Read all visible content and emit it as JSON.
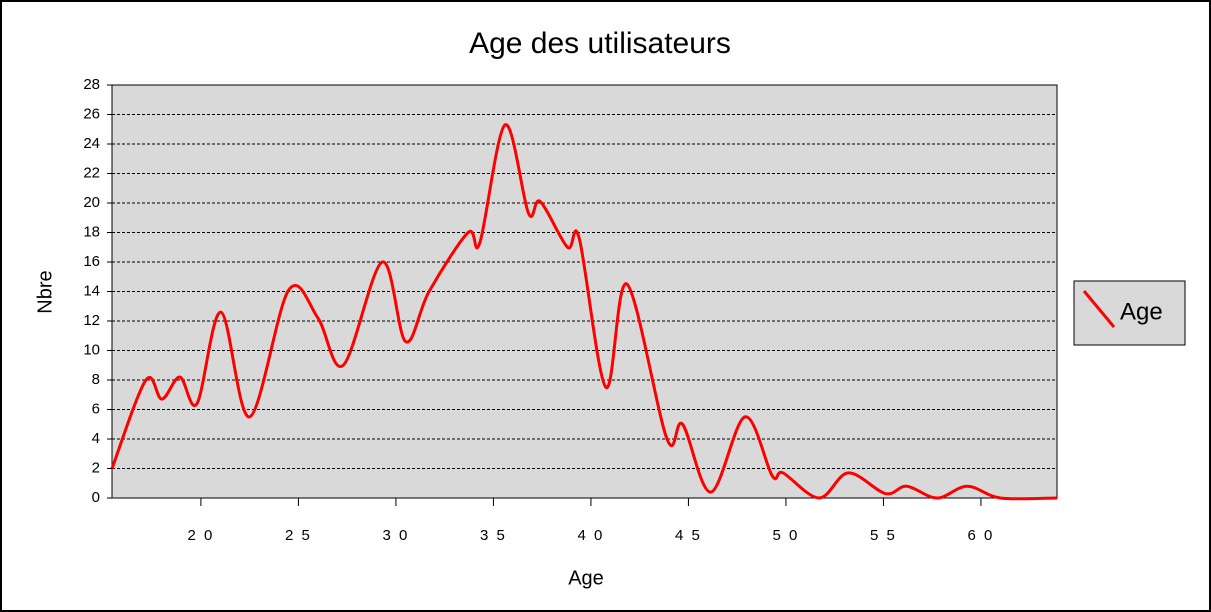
{
  "chart_data": {
    "type": "line",
    "title": "Age des utilisateurs",
    "xlabel": "Age",
    "ylabel": "Nbre",
    "x": [
      15.44,
      17.18,
      18.0,
      18.92,
      19.8,
      21.03,
      22.5,
      24.5,
      26.0,
      27.3,
      29.3,
      30.5,
      31.7,
      33.7,
      34.3,
      35.6,
      36.8,
      37.4,
      38.8,
      39.4,
      40.77,
      41.85,
      43.9,
      44.7,
      46.15,
      47.9,
      49.3,
      49.85,
      51.7,
      53.2,
      55.1,
      56.2,
      57.75,
      59.3,
      61.0,
      63.9
    ],
    "series": [
      {
        "name": "Age",
        "color": "#ff0000",
        "values": [
          2,
          8,
          6.7,
          8.2,
          6.4,
          12.6,
          5.5,
          14.1,
          12.2,
          9,
          16,
          10.6,
          14,
          18,
          17.3,
          25.3,
          19.3,
          20.1,
          17,
          17.6,
          7.5,
          14.5,
          4,
          5,
          0.4,
          5.5,
          1.5,
          1.7,
          0,
          1.7,
          0.3,
          0.8,
          0,
          0.8,
          0,
          0
        ]
      }
    ],
    "xlim": [
      15.44,
      63.9
    ],
    "xticks": [
      {
        "value": 20,
        "label": "2 0"
      },
      {
        "value": 25,
        "label": "2 5"
      },
      {
        "value": 30,
        "label": "3 0"
      },
      {
        "value": 35,
        "label": "3 5"
      },
      {
        "value": 40,
        "label": "4 0"
      },
      {
        "value": 45,
        "label": "4 5"
      },
      {
        "value": 50,
        "label": "5 0"
      },
      {
        "value": 55,
        "label": "5 5"
      },
      {
        "value": 60,
        "label": "6 0"
      }
    ],
    "ylim": [
      0,
      28
    ],
    "yticks": [
      0,
      2,
      4,
      6,
      8,
      10,
      12,
      14,
      16,
      18,
      20,
      22,
      24,
      26,
      28
    ],
    "grid": true,
    "legend": "right",
    "plot_background": "#d9d9d9"
  }
}
